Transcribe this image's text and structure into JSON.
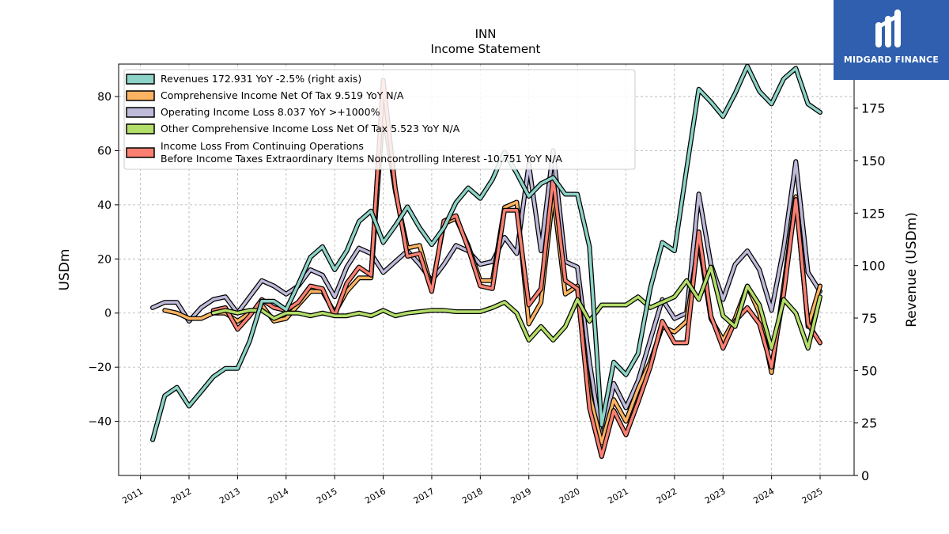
{
  "brand": {
    "name": "MIDGARD FINANCE",
    "color": "#2f5fae"
  },
  "chart_data": {
    "type": "line",
    "title": "INN",
    "subtitle": "Income Statement",
    "ylabel": "USDm",
    "ylabel_right": "Revenue (USDm)",
    "ylim": [
      -60,
      92
    ],
    "ylim_right": [
      0,
      196
    ],
    "xlim": [
      2010.55,
      2025.7
    ],
    "yticks": [
      -40,
      -20,
      0,
      20,
      40,
      60,
      80
    ],
    "yticks_right": [
      0,
      25,
      50,
      75,
      100,
      125,
      150,
      175
    ],
    "x_ticks": [
      "2011",
      "2012",
      "2013",
      "2014",
      "2015",
      "2016",
      "2017",
      "2018",
      "2019",
      "2020",
      "2021",
      "2022",
      "2023",
      "2024",
      "2025"
    ],
    "grid": true,
    "legend_position": "top-left",
    "series": [
      {
        "name": "Revenues",
        "legend": "Revenues  172.931 YoY -2.5% (right axis)",
        "axis": "right",
        "color": "#8dd3c7",
        "points": [
          [
            2011.25,
            17
          ],
          [
            2011.5,
            38
          ],
          [
            2011.75,
            42
          ],
          [
            2012.0,
            33
          ],
          [
            2012.25,
            40
          ],
          [
            2012.5,
            47
          ],
          [
            2012.75,
            51
          ],
          [
            2013.0,
            51
          ],
          [
            2013.25,
            64
          ],
          [
            2013.5,
            83
          ],
          [
            2013.75,
            83
          ],
          [
            2014.0,
            79
          ],
          [
            2014.25,
            91
          ],
          [
            2014.5,
            104
          ],
          [
            2014.75,
            109
          ],
          [
            2015.0,
            98
          ],
          [
            2015.25,
            107
          ],
          [
            2015.5,
            121
          ],
          [
            2015.75,
            126
          ],
          [
            2016.0,
            111
          ],
          [
            2016.25,
            119
          ],
          [
            2016.5,
            128
          ],
          [
            2016.75,
            118
          ],
          [
            2017.0,
            110
          ],
          [
            2017.25,
            118
          ],
          [
            2017.5,
            130
          ],
          [
            2017.75,
            137
          ],
          [
            2018.0,
            132
          ],
          [
            2018.25,
            141
          ],
          [
            2018.5,
            154
          ],
          [
            2018.75,
            144
          ],
          [
            2019.0,
            133
          ],
          [
            2019.25,
            139
          ],
          [
            2019.5,
            142
          ],
          [
            2019.75,
            134
          ],
          [
            2020.0,
            134
          ],
          [
            2020.25,
            109
          ],
          [
            2020.5,
            24
          ],
          [
            2020.75,
            54
          ],
          [
            2021.0,
            48
          ],
          [
            2021.25,
            58
          ],
          [
            2021.5,
            89
          ],
          [
            2021.75,
            111
          ],
          [
            2022.0,
            107
          ],
          [
            2022.25,
            146
          ],
          [
            2022.5,
            184
          ],
          [
            2022.75,
            178
          ],
          [
            2023.0,
            171
          ],
          [
            2023.25,
            182
          ],
          [
            2023.5,
            195
          ],
          [
            2023.75,
            183
          ],
          [
            2024.0,
            177
          ],
          [
            2024.25,
            189
          ],
          [
            2024.5,
            194
          ],
          [
            2024.75,
            177
          ],
          [
            2025.0,
            173
          ]
        ]
      },
      {
        "name": "Comprehensive Income Net Of Tax",
        "legend": "Comprehensive Income Net Of Tax  9.519 YoY N/A",
        "axis": "left",
        "color": "#fdb462",
        "points": [
          [
            2011.5,
            1
          ],
          [
            2011.75,
            0
          ],
          [
            2012.0,
            -2
          ],
          [
            2012.25,
            -2
          ],
          [
            2012.5,
            0
          ],
          [
            2012.75,
            0
          ],
          [
            2013.0,
            -3
          ],
          [
            2013.25,
            0
          ],
          [
            2013.5,
            3
          ],
          [
            2013.75,
            -3
          ],
          [
            2014.0,
            -2
          ],
          [
            2014.25,
            3
          ],
          [
            2014.5,
            8
          ],
          [
            2014.75,
            8
          ],
          [
            2015.0,
            0
          ],
          [
            2015.25,
            8
          ],
          [
            2015.5,
            13
          ],
          [
            2015.75,
            13
          ],
          [
            2016.0,
            75
          ],
          [
            2016.25,
            45
          ],
          [
            2016.5,
            24
          ],
          [
            2016.75,
            25
          ],
          [
            2017.0,
            9
          ],
          [
            2017.25,
            33
          ],
          [
            2017.5,
            35
          ],
          [
            2017.75,
            25
          ],
          [
            2018.0,
            12
          ],
          [
            2018.25,
            12
          ],
          [
            2018.5,
            39
          ],
          [
            2018.75,
            41
          ],
          [
            2019.0,
            -4
          ],
          [
            2019.25,
            4
          ],
          [
            2019.5,
            44
          ],
          [
            2019.75,
            7
          ],
          [
            2020.0,
            10
          ],
          [
            2020.25,
            -30
          ],
          [
            2020.5,
            -48
          ],
          [
            2020.75,
            -32
          ],
          [
            2021.0,
            -40
          ],
          [
            2021.25,
            -28
          ],
          [
            2021.5,
            -18
          ],
          [
            2021.75,
            -5
          ],
          [
            2022.0,
            -7
          ],
          [
            2022.25,
            -3
          ],
          [
            2022.5,
            27
          ],
          [
            2022.75,
            -2
          ],
          [
            2023.0,
            -10
          ],
          [
            2023.25,
            -2
          ],
          [
            2023.5,
            10
          ],
          [
            2023.75,
            0
          ],
          [
            2024.0,
            -22
          ],
          [
            2024.25,
            10
          ],
          [
            2024.5,
            43
          ],
          [
            2024.75,
            -5
          ],
          [
            2025.0,
            10
          ]
        ]
      },
      {
        "name": "Operating Income Loss",
        "legend": "Operating Income Loss  8.037 YoY >+1000%",
        "axis": "left",
        "color": "#bebada",
        "points": [
          [
            2011.25,
            2
          ],
          [
            2011.5,
            4
          ],
          [
            2011.75,
            4
          ],
          [
            2012.0,
            -3
          ],
          [
            2012.25,
            2
          ],
          [
            2012.5,
            5
          ],
          [
            2012.75,
            6
          ],
          [
            2013.0,
            0
          ],
          [
            2013.25,
            6
          ],
          [
            2013.5,
            12
          ],
          [
            2013.75,
            10
          ],
          [
            2014.0,
            7
          ],
          [
            2014.25,
            10
          ],
          [
            2014.5,
            16
          ],
          [
            2014.75,
            14
          ],
          [
            2015.0,
            6
          ],
          [
            2015.25,
            17
          ],
          [
            2015.5,
            24
          ],
          [
            2015.75,
            22
          ],
          [
            2016.0,
            15
          ],
          [
            2016.25,
            19
          ],
          [
            2016.5,
            23
          ],
          [
            2016.75,
            18
          ],
          [
            2017.0,
            12
          ],
          [
            2017.25,
            18
          ],
          [
            2017.5,
            25
          ],
          [
            2017.75,
            23
          ],
          [
            2018.0,
            18
          ],
          [
            2018.25,
            19
          ],
          [
            2018.5,
            28
          ],
          [
            2018.75,
            22
          ],
          [
            2019.0,
            55
          ],
          [
            2019.25,
            23
          ],
          [
            2019.5,
            60
          ],
          [
            2019.75,
            19
          ],
          [
            2020.0,
            17
          ],
          [
            2020.25,
            -18
          ],
          [
            2020.5,
            -47
          ],
          [
            2020.75,
            -26
          ],
          [
            2021.0,
            -35
          ],
          [
            2021.25,
            -25
          ],
          [
            2021.5,
            -10
          ],
          [
            2021.75,
            5
          ],
          [
            2022.0,
            -2
          ],
          [
            2022.25,
            0
          ],
          [
            2022.5,
            44
          ],
          [
            2022.75,
            18
          ],
          [
            2023.0,
            5
          ],
          [
            2023.25,
            18
          ],
          [
            2023.5,
            23
          ],
          [
            2023.75,
            16
          ],
          [
            2024.0,
            1
          ],
          [
            2024.25,
            24
          ],
          [
            2024.5,
            56
          ],
          [
            2024.75,
            15
          ],
          [
            2025.0,
            8
          ]
        ]
      },
      {
        "name": "Other Comprehensive Income Loss Net Of Tax",
        "legend": "Other Comprehensive Income Loss Net Of Tax  5.523 YoY N/A",
        "axis": "left",
        "color": "#b3de69",
        "points": [
          [
            2012.5,
            0
          ],
          [
            2012.75,
            1
          ],
          [
            2013.0,
            0
          ],
          [
            2013.25,
            1
          ],
          [
            2013.5,
            1
          ],
          [
            2013.75,
            -2
          ],
          [
            2014.0,
            0
          ],
          [
            2014.25,
            0
          ],
          [
            2014.5,
            -1
          ],
          [
            2014.75,
            0
          ],
          [
            2015.0,
            -1
          ],
          [
            2015.25,
            -1
          ],
          [
            2015.5,
            0
          ],
          [
            2015.75,
            -1
          ],
          [
            2016.0,
            1
          ],
          [
            2016.25,
            -1
          ],
          [
            2016.5,
            0
          ],
          [
            2016.75,
            0.5
          ],
          [
            2017.0,
            1
          ],
          [
            2017.25,
            1
          ],
          [
            2017.5,
            0.5
          ],
          [
            2017.75,
            0.5
          ],
          [
            2018.0,
            0.5
          ],
          [
            2018.25,
            2
          ],
          [
            2018.5,
            4
          ],
          [
            2018.75,
            0
          ],
          [
            2019.0,
            -10
          ],
          [
            2019.25,
            -5
          ],
          [
            2019.5,
            -10
          ],
          [
            2019.75,
            -5
          ],
          [
            2020.0,
            5
          ],
          [
            2020.25,
            -3
          ],
          [
            2020.5,
            3
          ],
          [
            2020.75,
            3
          ],
          [
            2021.0,
            3
          ],
          [
            2021.25,
            6
          ],
          [
            2021.5,
            2
          ],
          [
            2021.75,
            4
          ],
          [
            2022.0,
            6
          ],
          [
            2022.25,
            12
          ],
          [
            2022.5,
            5
          ],
          [
            2022.75,
            17
          ],
          [
            2023.0,
            -1
          ],
          [
            2023.25,
            -5
          ],
          [
            2023.5,
            10
          ],
          [
            2023.75,
            3
          ],
          [
            2024.0,
            -13
          ],
          [
            2024.25,
            5
          ],
          [
            2024.5,
            0
          ],
          [
            2024.75,
            -13
          ],
          [
            2025.0,
            6
          ]
        ]
      },
      {
        "name": "Income Loss From Continuing Operations Before Income Taxes Extraordinary Items Noncontrolling Interest",
        "legend": "Income Loss From Continuing Operations\nBefore Income Taxes Extraordinary Items Noncontrolling Interest  -10.751 YoY N/A",
        "axis": "left",
        "color": "#fb8072",
        "points": [
          [
            2012.5,
            1
          ],
          [
            2012.75,
            2
          ],
          [
            2013.0,
            -6
          ],
          [
            2013.25,
            -1
          ],
          [
            2013.5,
            5
          ],
          [
            2013.75,
            2
          ],
          [
            2014.0,
            1
          ],
          [
            2014.25,
            4
          ],
          [
            2014.5,
            10
          ],
          [
            2014.75,
            9
          ],
          [
            2015.0,
            -1
          ],
          [
            2015.25,
            11
          ],
          [
            2015.5,
            17
          ],
          [
            2015.75,
            14
          ],
          [
            2016.0,
            86
          ],
          [
            2016.25,
            46
          ],
          [
            2016.5,
            21
          ],
          [
            2016.75,
            22
          ],
          [
            2017.0,
            8
          ],
          [
            2017.25,
            34
          ],
          [
            2017.5,
            36
          ],
          [
            2017.75,
            24
          ],
          [
            2018.0,
            10
          ],
          [
            2018.25,
            9
          ],
          [
            2018.5,
            38
          ],
          [
            2018.75,
            38
          ],
          [
            2019.0,
            3
          ],
          [
            2019.25,
            9
          ],
          [
            2019.5,
            50
          ],
          [
            2019.75,
            12
          ],
          [
            2020.0,
            9
          ],
          [
            2020.25,
            -35
          ],
          [
            2020.5,
            -53
          ],
          [
            2020.75,
            -36
          ],
          [
            2021.0,
            -45
          ],
          [
            2021.25,
            -33
          ],
          [
            2021.5,
            -20
          ],
          [
            2021.75,
            -3
          ],
          [
            2022.0,
            -11
          ],
          [
            2022.25,
            -11
          ],
          [
            2022.5,
            30
          ],
          [
            2022.75,
            -1
          ],
          [
            2023.0,
            -13
          ],
          [
            2023.25,
            -3
          ],
          [
            2023.5,
            2
          ],
          [
            2023.75,
            -4
          ],
          [
            2024.0,
            -20
          ],
          [
            2024.25,
            7
          ],
          [
            2024.5,
            42
          ],
          [
            2024.75,
            -4
          ],
          [
            2025.0,
            -11
          ]
        ]
      }
    ]
  }
}
